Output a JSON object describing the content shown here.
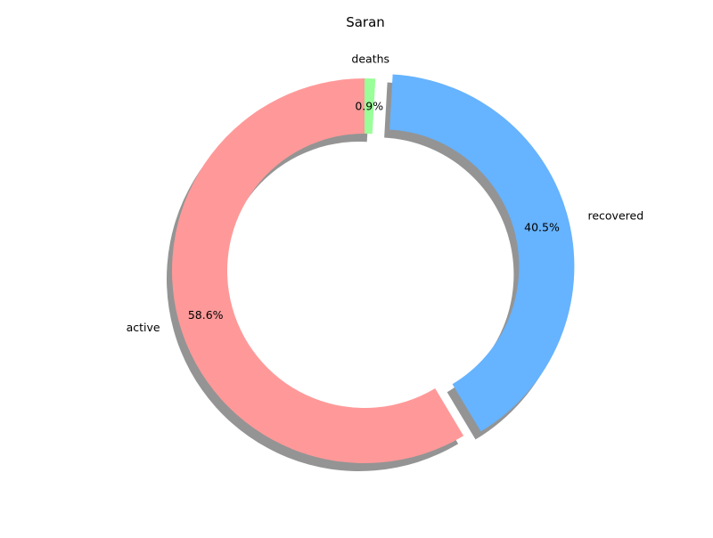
{
  "chart_data": {
    "type": "pie",
    "style": "donut",
    "title": "Saran",
    "labels": [
      "deaths",
      "recovered",
      "active"
    ],
    "values": [
      0.9,
      40.5,
      58.6
    ],
    "value_labels": [
      "0.9%",
      "40.5%",
      "58.6%"
    ],
    "colors": [
      "#99ff99",
      "#66b3ff",
      "#ff9999"
    ],
    "exploded": [
      false,
      true,
      false
    ],
    "start": "top, clockwise",
    "shadow": true
  }
}
